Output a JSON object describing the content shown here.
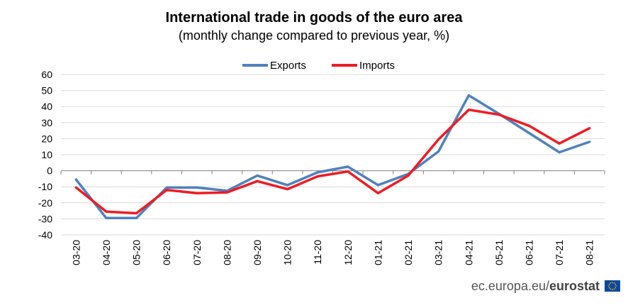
{
  "chart_data": {
    "type": "line",
    "title": "International trade in goods of the euro area",
    "subtitle": "(monthly change compared to previous year, %)",
    "categories": [
      "03-20",
      "04-20",
      "05-20",
      "06-20",
      "07-20",
      "08-20",
      "09-20",
      "10-20",
      "11-20",
      "12-20",
      "01-21",
      "02-21",
      "03-21",
      "04-21",
      "05-21",
      "06-21",
      "07-21",
      "08-21"
    ],
    "series": [
      {
        "name": "Exports",
        "color": "#4f81bd",
        "values": [
          -5.5,
          -29.5,
          -29.5,
          -10.5,
          -10.5,
          -12.5,
          -3,
          -9,
          -1,
          2.5,
          -9,
          -2,
          12,
          47,
          35.5,
          23.5,
          11.5,
          18
        ]
      },
      {
        "name": "Imports",
        "color": "#ee1c25",
        "values": [
          -10.5,
          -25.5,
          -26.5,
          -12,
          -14,
          -13.5,
          -6.5,
          -11.5,
          -3.5,
          -0.5,
          -14,
          -3,
          19.5,
          38,
          35,
          28,
          17,
          26.5
        ]
      }
    ],
    "yticks": [
      60,
      50,
      40,
      30,
      20,
      10,
      0,
      -10,
      -20,
      -30,
      -40
    ],
    "ylim": [
      -40,
      60
    ],
    "legend_position": "top-center",
    "grid": true
  },
  "footer": {
    "site": "ec.europa.eu/",
    "brand": "eurostat"
  }
}
